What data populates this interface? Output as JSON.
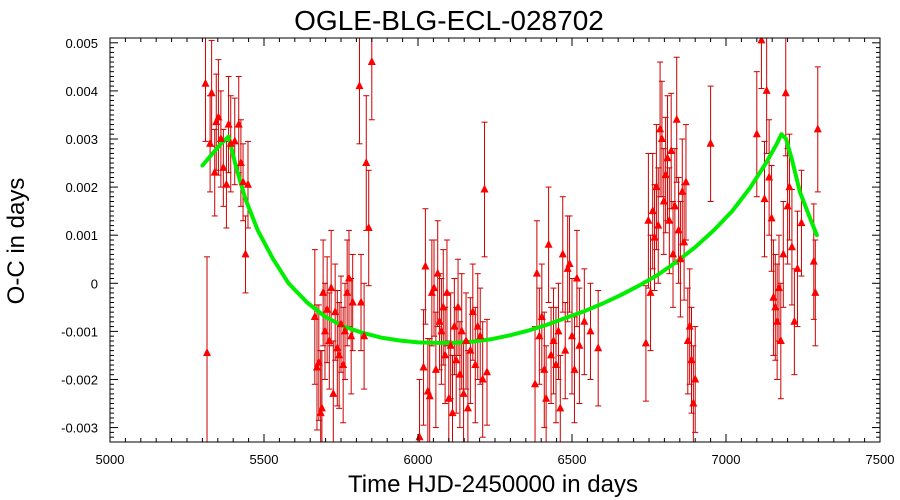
{
  "chart_data": {
    "type": "scatter",
    "title": "OGLE-BLG-ECL-028702",
    "xlabel": "Time HJD-2450000 in days",
    "ylabel": "O-C in days",
    "xlim": [
      5000,
      7500
    ],
    "ylim": [
      -0.0033,
      0.0051
    ],
    "x_ticks": [
      "5000",
      "5500",
      "6000",
      "6500",
      "7000",
      "7500"
    ],
    "y_ticks": [
      "-0.003",
      "-0.002",
      "-0.001",
      "0",
      "0.001",
      "0.002",
      "0.003",
      "0.004",
      "0.005"
    ],
    "x_tick_values": [
      5000,
      5500,
      6000,
      6500,
      7000,
      7500
    ],
    "y_tick_values": [
      -0.003,
      -0.002,
      -0.001,
      0,
      0.001,
      0.002,
      0.003,
      0.004,
      0.005
    ],
    "grid": false,
    "colors": {
      "points": "#ff0000",
      "errorbars": "#cc0000",
      "model": "#00ee00",
      "frame": "#000000"
    },
    "series": [
      {
        "kind": "points_with_errorbars",
        "points": [
          {
            "x": 5310,
            "y": 0.00415,
            "err": 0.0012
          },
          {
            "x": 5315,
            "y": -0.00145,
            "err": 0.002
          },
          {
            "x": 5325,
            "y": 0.0029,
            "err": 0.001
          },
          {
            "x": 5330,
            "y": 0.00395,
            "err": 0.0011
          },
          {
            "x": 5340,
            "y": 0.0023,
            "err": 0.0009
          },
          {
            "x": 5345,
            "y": 0.00335,
            "err": 0.001
          },
          {
            "x": 5352,
            "y": 0.00345,
            "err": 0.0012
          },
          {
            "x": 5360,
            "y": 0.003,
            "err": 0.001
          },
          {
            "x": 5368,
            "y": 0.0024,
            "err": 0.0008
          },
          {
            "x": 5378,
            "y": 0.00205,
            "err": 0.0009
          },
          {
            "x": 5385,
            "y": 0.0033,
            "err": 0.001
          },
          {
            "x": 5392,
            "y": 0.0029,
            "err": 0.001
          },
          {
            "x": 5405,
            "y": 0.00295,
            "err": 0.0009
          },
          {
            "x": 5418,
            "y": 0.0033,
            "err": 0.001
          },
          {
            "x": 5425,
            "y": 0.0025,
            "err": 0.0009
          },
          {
            "x": 5432,
            "y": 0.0021,
            "err": 0.0008
          },
          {
            "x": 5440,
            "y": 0.0006,
            "err": 0.0008
          },
          {
            "x": 5448,
            "y": 0.00205,
            "err": 0.0009
          },
          {
            "x": 5665,
            "y": -0.0007,
            "err": 0.0014
          },
          {
            "x": 5672,
            "y": -0.00175,
            "err": 0.0013
          },
          {
            "x": 5678,
            "y": -0.00165,
            "err": 0.0012
          },
          {
            "x": 5684,
            "y": -0.0027,
            "err": 0.0013
          },
          {
            "x": 5688,
            "y": -0.0026,
            "err": 0.0012
          },
          {
            "x": 5692,
            "y": -0.0002,
            "err": 0.0011
          },
          {
            "x": 5698,
            "y": -0.001,
            "err": 0.001
          },
          {
            "x": 5705,
            "y": -0.00055,
            "err": 0.0011
          },
          {
            "x": 5712,
            "y": -0.0012,
            "err": 0.001
          },
          {
            "x": 5718,
            "y": -0.0001,
            "err": 0.0012
          },
          {
            "x": 5725,
            "y": -0.0023,
            "err": 0.0011
          },
          {
            "x": 5731,
            "y": -0.0006,
            "err": 0.001
          },
          {
            "x": 5738,
            "y": -0.00135,
            "err": 0.0012
          },
          {
            "x": 5744,
            "y": -0.0015,
            "err": 0.0011
          },
          {
            "x": 5750,
            "y": -0.00085,
            "err": 0.001
          },
          {
            "x": 5757,
            "y": -0.0017,
            "err": 0.0012
          },
          {
            "x": 5763,
            "y": -0.001,
            "err": 0.001
          },
          {
            "x": 5770,
            "y": -0.0002,
            "err": 0.0011
          },
          {
            "x": 5776,
            "y": 0.0001,
            "err": 0.001
          },
          {
            "x": 5783,
            "y": -0.0011,
            "err": 0.0012
          },
          {
            "x": 5788,
            "y": -0.0004,
            "err": 0.001
          },
          {
            "x": 5810,
            "y": 0.0041,
            "err": 0.0012
          },
          {
            "x": 5815,
            "y": -0.0004,
            "err": 0.001
          },
          {
            "x": 5825,
            "y": -0.0011,
            "err": 0.0011
          },
          {
            "x": 5832,
            "y": 0.0025,
            "err": 0.0014
          },
          {
            "x": 5840,
            "y": 0.00115,
            "err": 0.0012
          },
          {
            "x": 5850,
            "y": 0.0046,
            "err": 0.0012
          },
          {
            "x": 6005,
            "y": -0.0032,
            "err": 0.0012
          },
          {
            "x": 6018,
            "y": -0.00175,
            "err": 0.0012
          },
          {
            "x": 6024,
            "y": 0.00035,
            "err": 0.0012
          },
          {
            "x": 6032,
            "y": -0.00225,
            "err": 0.0011
          },
          {
            "x": 6038,
            "y": -0.00235,
            "err": 0.0012
          },
          {
            "x": 6045,
            "y": -0.0002,
            "err": 0.0011
          },
          {
            "x": 6052,
            "y": -0.0001,
            "err": 0.001
          },
          {
            "x": 6058,
            "y": -0.0018,
            "err": 0.0012
          },
          {
            "x": 6064,
            "y": 0.0002,
            "err": 0.0011
          },
          {
            "x": 6070,
            "y": -0.0008,
            "err": 0.001
          },
          {
            "x": 6076,
            "y": -0.001,
            "err": 0.0011
          },
          {
            "x": 6082,
            "y": -0.0005,
            "err": 0.0012
          },
          {
            "x": 6088,
            "y": -0.0015,
            "err": 0.001
          },
          {
            "x": 6094,
            "y": -0.0002,
            "err": 0.0011
          },
          {
            "x": 6100,
            "y": -0.0024,
            "err": 0.0012
          },
          {
            "x": 6106,
            "y": -0.0013,
            "err": 0.0011
          },
          {
            "x": 6112,
            "y": -0.0027,
            "err": 0.0012
          },
          {
            "x": 6118,
            "y": -0.0009,
            "err": 0.001
          },
          {
            "x": 6124,
            "y": -0.0016,
            "err": 0.0011
          },
          {
            "x": 6130,
            "y": -0.0005,
            "err": 0.001
          },
          {
            "x": 6136,
            "y": -0.0019,
            "err": 0.0011
          },
          {
            "x": 6142,
            "y": -0.001,
            "err": 0.0012
          },
          {
            "x": 6148,
            "y": -0.0023,
            "err": 0.0011
          },
          {
            "x": 6156,
            "y": -0.0012,
            "err": 0.001
          },
          {
            "x": 6162,
            "y": -0.0026,
            "err": 0.0012
          },
          {
            "x": 6170,
            "y": -0.0014,
            "err": 0.0011
          },
          {
            "x": 6178,
            "y": -0.0006,
            "err": 0.001
          },
          {
            "x": 6186,
            "y": -0.0017,
            "err": 0.0012
          },
          {
            "x": 6194,
            "y": -0.0009,
            "err": 0.0011
          },
          {
            "x": 6202,
            "y": -0.0011,
            "err": 0.001
          },
          {
            "x": 6210,
            "y": -0.002,
            "err": 0.0012
          },
          {
            "x": 6216,
            "y": 0.00195,
            "err": 0.0014
          },
          {
            "x": 6224,
            "y": -0.00185,
            "err": 0.0011
          },
          {
            "x": 6380,
            "y": -0.0021,
            "err": 0.0012
          },
          {
            "x": 6386,
            "y": 0.0002,
            "err": 0.0011
          },
          {
            "x": 6394,
            "y": -0.0011,
            "err": 0.001
          },
          {
            "x": 6402,
            "y": -0.0007,
            "err": 0.0011
          },
          {
            "x": 6410,
            "y": -0.0018,
            "err": 0.0012
          },
          {
            "x": 6416,
            "y": -0.0024,
            "err": 0.0011
          },
          {
            "x": 6424,
            "y": 0.0008,
            "err": 0.0012
          },
          {
            "x": 6432,
            "y": -0.0015,
            "err": 0.001
          },
          {
            "x": 6440,
            "y": -0.0012,
            "err": 0.0011
          },
          {
            "x": 6448,
            "y": -0.0017,
            "err": 0.0012
          },
          {
            "x": 6456,
            "y": -0.001,
            "err": 0.001
          },
          {
            "x": 6462,
            "y": -0.0026,
            "err": 0.0011
          },
          {
            "x": 6470,
            "y": 0.0006,
            "err": 0.0012
          },
          {
            "x": 6478,
            "y": -0.0014,
            "err": 0.001
          },
          {
            "x": 6486,
            "y": 0.0003,
            "err": 0.0011
          },
          {
            "x": 6492,
            "y": 0.0004,
            "err": 0.001
          },
          {
            "x": 6500,
            "y": -0.0011,
            "err": 0.0012
          },
          {
            "x": 6508,
            "y": -0.0018,
            "err": 0.0011
          },
          {
            "x": 6516,
            "y": 0.0001,
            "err": 0.001
          },
          {
            "x": 6524,
            "y": -0.0013,
            "err": 0.0012
          },
          {
            "x": 6540,
            "y": -0.0008,
            "err": 0.0011
          },
          {
            "x": 6560,
            "y": -0.001,
            "err": 0.001
          },
          {
            "x": 6585,
            "y": -0.00135,
            "err": 0.0012
          },
          {
            "x": 6740,
            "y": -0.00125,
            "err": 0.0012
          },
          {
            "x": 6748,
            "y": 0.0013,
            "err": 0.0014
          },
          {
            "x": 6755,
            "y": -0.0002,
            "err": 0.0012
          },
          {
            "x": 6762,
            "y": 0.0015,
            "err": 0.0012
          },
          {
            "x": 6768,
            "y": 0.00095,
            "err": 0.0011
          },
          {
            "x": 6774,
            "y": 0.002,
            "err": 0.0013
          },
          {
            "x": 6780,
            "y": 0.0012,
            "err": 0.0012
          },
          {
            "x": 6786,
            "y": 0.0032,
            "err": 0.0014
          },
          {
            "x": 6792,
            "y": 0.003,
            "err": 0.0012
          },
          {
            "x": 6798,
            "y": 0.0017,
            "err": 0.0011
          },
          {
            "x": 6804,
            "y": 0.00225,
            "err": 0.0012
          },
          {
            "x": 6810,
            "y": 0.0026,
            "err": 0.0013
          },
          {
            "x": 6816,
            "y": 0.0013,
            "err": 0.0011
          },
          {
            "x": 6822,
            "y": 0.00275,
            "err": 0.0012
          },
          {
            "x": 6828,
            "y": 0.0006,
            "err": 0.0011
          },
          {
            "x": 6834,
            "y": 0.0016,
            "err": 0.0012
          },
          {
            "x": 6840,
            "y": 0.0034,
            "err": 0.0013
          },
          {
            "x": 6846,
            "y": 0.0011,
            "err": 0.0011
          },
          {
            "x": 6852,
            "y": 0.0005,
            "err": 0.0012
          },
          {
            "x": 6858,
            "y": 0.0019,
            "err": 0.0011
          },
          {
            "x": 6864,
            "y": 0.00085,
            "err": 0.0012
          },
          {
            "x": 6870,
            "y": 0.0021,
            "err": 0.0012
          },
          {
            "x": 6876,
            "y": -0.0012,
            "err": 0.0011
          },
          {
            "x": 6882,
            "y": -0.0009,
            "err": 0.0012
          },
          {
            "x": 6888,
            "y": -0.0016,
            "err": 0.0011
          },
          {
            "x": 6894,
            "y": -0.0025,
            "err": 0.0012
          },
          {
            "x": 6900,
            "y": -0.002,
            "err": 0.0011
          },
          {
            "x": 6950,
            "y": 0.0029,
            "err": 0.0012
          },
          {
            "x": 7100,
            "y": 0.0031,
            "err": 0.0013
          },
          {
            "x": 7115,
            "y": 0.00505,
            "err": 0.001
          },
          {
            "x": 7125,
            "y": 0.00175,
            "err": 0.0012
          },
          {
            "x": 7132,
            "y": 0.004,
            "err": 0.0013
          },
          {
            "x": 7140,
            "y": 0.0022,
            "err": 0.0012
          },
          {
            "x": 7148,
            "y": 0.00135,
            "err": 0.0011
          },
          {
            "x": 7154,
            "y": -0.0003,
            "err": 0.0012
          },
          {
            "x": 7160,
            "y": -0.0005,
            "err": 0.0011
          },
          {
            "x": 7166,
            "y": -0.0008,
            "err": 0.0012
          },
          {
            "x": 7172,
            "y": -0.0001,
            "err": 0.0011
          },
          {
            "x": 7178,
            "y": -0.0012,
            "err": 0.0012
          },
          {
            "x": 7186,
            "y": 0.0006,
            "err": 0.0011
          },
          {
            "x": 7194,
            "y": 0.00395,
            "err": 0.0013
          },
          {
            "x": 7200,
            "y": 0.0016,
            "err": 0.0012
          },
          {
            "x": 7206,
            "y": 0.002,
            "err": 0.0011
          },
          {
            "x": 7214,
            "y": 0.00075,
            "err": 0.0012
          },
          {
            "x": 7222,
            "y": -0.0008,
            "err": 0.0011
          },
          {
            "x": 7232,
            "y": 0.0003,
            "err": 0.0012
          },
          {
            "x": 7245,
            "y": 0.00125,
            "err": 0.0011
          },
          {
            "x": 7285,
            "y": 0.00045,
            "err": 0.0012
          },
          {
            "x": 7290,
            "y": -0.0002,
            "err": 0.0011
          },
          {
            "x": 7298,
            "y": 0.0032,
            "err": 0.0013
          }
        ]
      },
      {
        "kind": "model_curve",
        "x": [
          5300,
          5320,
          5340,
          5360,
          5385,
          5410,
          5440,
          5480,
          5530,
          5580,
          5640,
          5700,
          5760,
          5820,
          5880,
          5940,
          6000,
          6060,
          6120,
          6180,
          6240,
          6300,
          6360,
          6420,
          6480,
          6540,
          6600,
          6660,
          6720,
          6780,
          6840,
          6900,
          6960,
          7020,
          7080,
          7130,
          7165,
          7180,
          7195,
          7215,
          7240,
          7270,
          7295
        ],
        "y": [
          0.00245,
          0.0026,
          0.00275,
          0.0029,
          0.00305,
          0.0024,
          0.00175,
          0.0011,
          0.0005,
          0.0,
          -0.0004,
          -0.0007,
          -0.0009,
          -0.00103,
          -0.00113,
          -0.00119,
          -0.00123,
          -0.00124,
          -0.00124,
          -0.00121,
          -0.00116,
          -0.00108,
          -0.00098,
          -0.00086,
          -0.00072,
          -0.00058,
          -0.00042,
          -0.00024,
          -4e-05,
          0.00018,
          0.00045,
          0.00075,
          0.0011,
          0.0015,
          0.002,
          0.0025,
          0.0029,
          0.0031,
          0.003,
          0.00255,
          0.0019,
          0.0014,
          0.001
        ]
      }
    ]
  }
}
